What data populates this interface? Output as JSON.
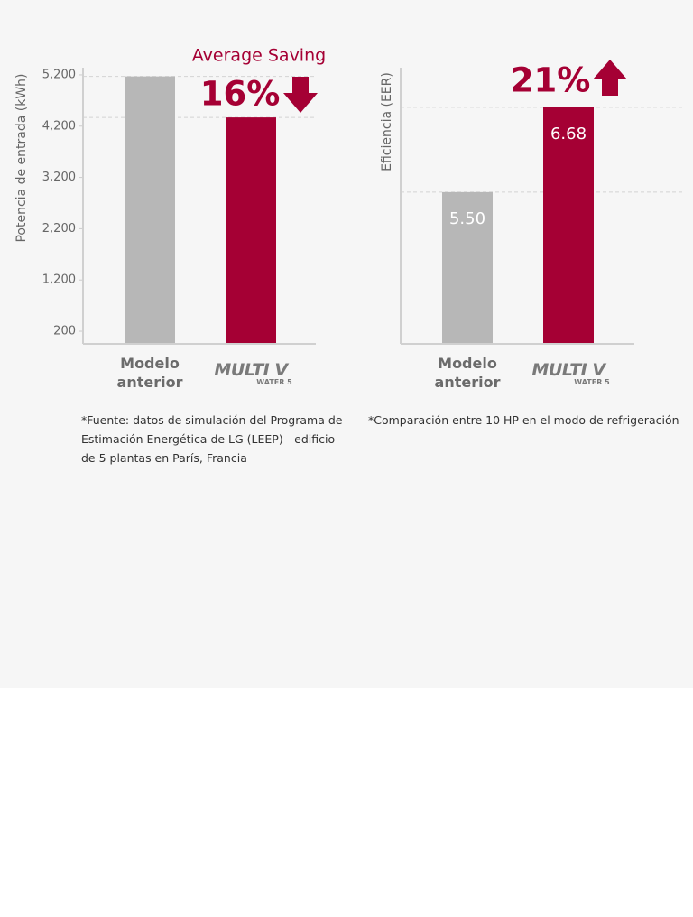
{
  "chart_data": [
    {
      "type": "bar",
      "y_label": "Potencia de entrada (kWh)",
      "categories": [
        "Modelo anterior",
        "MULTI V"
      ],
      "logo_badge": "WATER 5",
      "values": [
        5170,
        4370
      ],
      "colors": [
        "#b7b7b7",
        "#a50034"
      ],
      "ylim": [
        -46,
        5340
      ],
      "yticks": [
        200,
        {
          "value": 1200,
          "label": "1,200"
        },
        {
          "value": 2200,
          "label": "2,200"
        },
        {
          "value": 3200,
          "label": "3,200"
        },
        {
          "value": 4200,
          "label": "4,200"
        },
        {
          "value": 5200,
          "label": "5,200"
        }
      ],
      "annotation": "Average Saving",
      "change": "16%",
      "change_direction": "down",
      "note": "*Fuente: datos de simulación del Programa de Estimación Energética de LG (LEEP) - edificio de 5 plantas en París, Francia"
    },
    {
      "type": "bar",
      "y_label": "Eficiencia (EER)",
      "categories": [
        "Modelo anterior",
        "MULTI V"
      ],
      "logo_badge": "WATER 5",
      "values": [
        5.5,
        6.68
      ],
      "value_labels": [
        "5.50",
        "6.68"
      ],
      "colors": [
        "#b7b7b7",
        "#a50034"
      ],
      "ylim": [
        3.39,
        7.23
      ],
      "change": "21%",
      "change_direction": "up",
      "note": "*Comparación entre 10 HP en el modo de refrigeración"
    }
  ]
}
